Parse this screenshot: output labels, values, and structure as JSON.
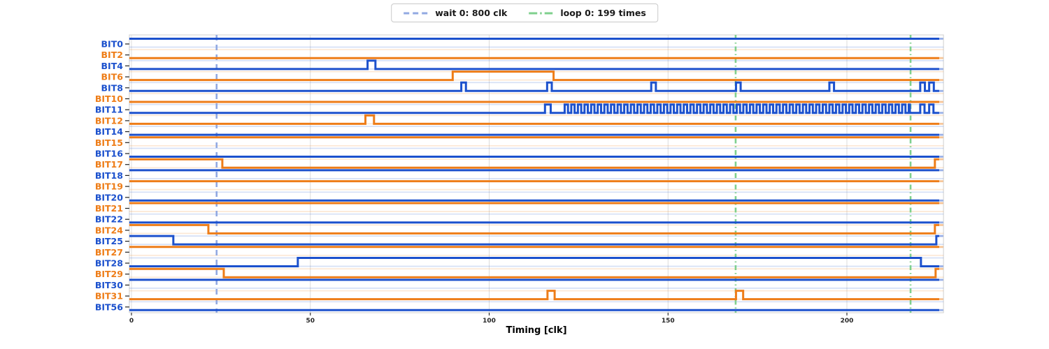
{
  "chart_data": {
    "type": "digital-timing-waveform",
    "xlabel": "Timing [clk]",
    "xticks": [
      0,
      50,
      100,
      150,
      200
    ],
    "x_start": -0.6,
    "x_end": 227,
    "data_end": 225.8,
    "tail_end": 226.9,
    "grid": "vertical-only",
    "legend_position": "top-center",
    "legend": [
      {
        "id": "wait",
        "label": "wait 0: 800 clk",
        "style": "dashed"
      },
      {
        "id": "loop",
        "label": "loop 0: 199 times",
        "style": "dashdot"
      }
    ],
    "markers": [
      {
        "kind": "wait",
        "t": 23.8
      },
      {
        "kind": "loop",
        "t": 168.9
      },
      {
        "kind": "loop",
        "t": 217.8
      }
    ],
    "colors": {
      "blue": "#1c51cd",
      "orange": "#ee7d18",
      "wait": "#91a9e2",
      "loop": "#7fd08d",
      "grid": "#dcdcdc",
      "tick_text": "#262626",
      "spine": "#cfcfcf"
    },
    "signals": [
      {
        "name": "BIT0",
        "color": "blue",
        "init": 1,
        "events": []
      },
      {
        "name": "BIT2",
        "color": "orange",
        "init": 0,
        "events": []
      },
      {
        "name": "BIT4",
        "color": "blue",
        "init": 0,
        "events": [
          [
            66,
            1
          ],
          [
            68.2,
            0
          ]
        ]
      },
      {
        "name": "BIT6",
        "color": "orange",
        "init": 0,
        "events": [
          [
            89.8,
            1
          ],
          [
            118,
            0
          ]
        ]
      },
      {
        "name": "BIT8",
        "color": "blue",
        "init": 0,
        "events": [
          [
            92.2,
            1
          ],
          [
            93.5,
            0
          ],
          [
            116.2,
            1
          ],
          [
            117.5,
            0
          ],
          [
            145.3,
            1
          ],
          [
            146.6,
            0
          ],
          [
            169,
            1
          ],
          [
            170.3,
            0
          ],
          [
            195.1,
            1
          ],
          [
            196.4,
            0
          ],
          [
            220.5,
            1
          ],
          [
            221.8,
            0
          ],
          [
            223,
            1
          ],
          [
            224.3,
            0
          ]
        ]
      },
      {
        "name": "BIT10",
        "color": "orange",
        "init": 0,
        "events": []
      },
      {
        "name": "BIT11",
        "color": "blue",
        "init": 0,
        "events": [
          [
            115.6,
            1
          ],
          [
            117.2,
            0
          ],
          [
            220.5,
            1
          ],
          [
            221.7,
            0
          ],
          [
            223,
            1
          ],
          [
            224.2,
            0
          ]
        ],
        "square_wave": {
          "start": 121.1,
          "end": 217.6,
          "period": 1.85
        }
      },
      {
        "name": "BIT12",
        "color": "orange",
        "init": 0,
        "events": [
          [
            65.4,
            1
          ],
          [
            67.8,
            0
          ]
        ]
      },
      {
        "name": "BIT14",
        "color": "blue",
        "init": 0,
        "events": []
      },
      {
        "name": "BIT15",
        "color": "orange",
        "init": 1,
        "events": []
      },
      {
        "name": "BIT16",
        "color": "blue",
        "init": 0,
        "events": []
      },
      {
        "name": "BIT17",
        "color": "orange",
        "init": 1,
        "events": [
          [
            25.4,
            0
          ],
          [
            224.6,
            1
          ]
        ]
      },
      {
        "name": "BIT18",
        "color": "blue",
        "init": 1,
        "events": []
      },
      {
        "name": "BIT19",
        "color": "orange",
        "init": 1,
        "events": []
      },
      {
        "name": "BIT20",
        "color": "blue",
        "init": 0,
        "events": []
      },
      {
        "name": "BIT21",
        "color": "orange",
        "init": 1,
        "events": []
      },
      {
        "name": "BIT22",
        "color": "blue",
        "init": 0,
        "events": []
      },
      {
        "name": "BIT24",
        "color": "orange",
        "init": 1,
        "events": [
          [
            21.5,
            0
          ],
          [
            224.6,
            1
          ]
        ]
      },
      {
        "name": "BIT25",
        "color": "blue",
        "init": 1,
        "events": [
          [
            11.7,
            0
          ],
          [
            225,
            1
          ]
        ]
      },
      {
        "name": "BIT27",
        "color": "orange",
        "init": 1,
        "events": []
      },
      {
        "name": "BIT28",
        "color": "blue",
        "init": 0,
        "events": [
          [
            46.5,
            1
          ],
          [
            220.7,
            0
          ]
        ]
      },
      {
        "name": "BIT29",
        "color": "orange",
        "init": 1,
        "events": [
          [
            25.8,
            0
          ],
          [
            224.8,
            1
          ]
        ]
      },
      {
        "name": "BIT30",
        "color": "blue",
        "init": 1,
        "events": []
      },
      {
        "name": "BIT31",
        "color": "orange",
        "init": 0,
        "events": [
          [
            116.3,
            1
          ],
          [
            118.3,
            0
          ],
          [
            169,
            1
          ],
          [
            171,
            0
          ]
        ]
      },
      {
        "name": "BIT56",
        "color": "blue",
        "init": 0,
        "events": []
      }
    ]
  }
}
